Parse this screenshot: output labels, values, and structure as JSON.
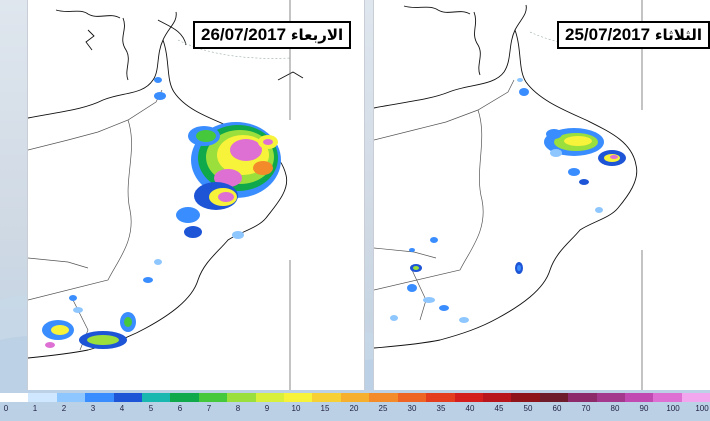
{
  "maps": [
    {
      "date": "26/07/2017",
      "day": "الاربعاء"
    },
    {
      "date": "25/07/2017",
      "day": "الثلاثاء"
    }
  ],
  "colorbar": {
    "ticks": [
      "0",
      "1",
      "2",
      "3",
      "4",
      "5",
      "6",
      "7",
      "8",
      "9",
      "10",
      "15",
      "20",
      "25",
      "30",
      "35",
      "40",
      "45",
      "50",
      "60",
      "70",
      "80",
      "90",
      "100",
      "100"
    ],
    "colors": [
      "#ffffff",
      "#cfe8ff",
      "#8ec6ff",
      "#3a8dff",
      "#1d55d6",
      "#18b8b0",
      "#0fa84a",
      "#45c83c",
      "#9bdf3c",
      "#d8ef3c",
      "#f7f23a",
      "#f7d035",
      "#f6b02e",
      "#f38b2a",
      "#ee6424",
      "#e33c1f",
      "#d41e1e",
      "#b9151d",
      "#8e1419",
      "#6e1c2c",
      "#8c2a6a",
      "#a3388c",
      "#c149b2",
      "#de6fd3",
      "#f2a6ee"
    ]
  }
}
